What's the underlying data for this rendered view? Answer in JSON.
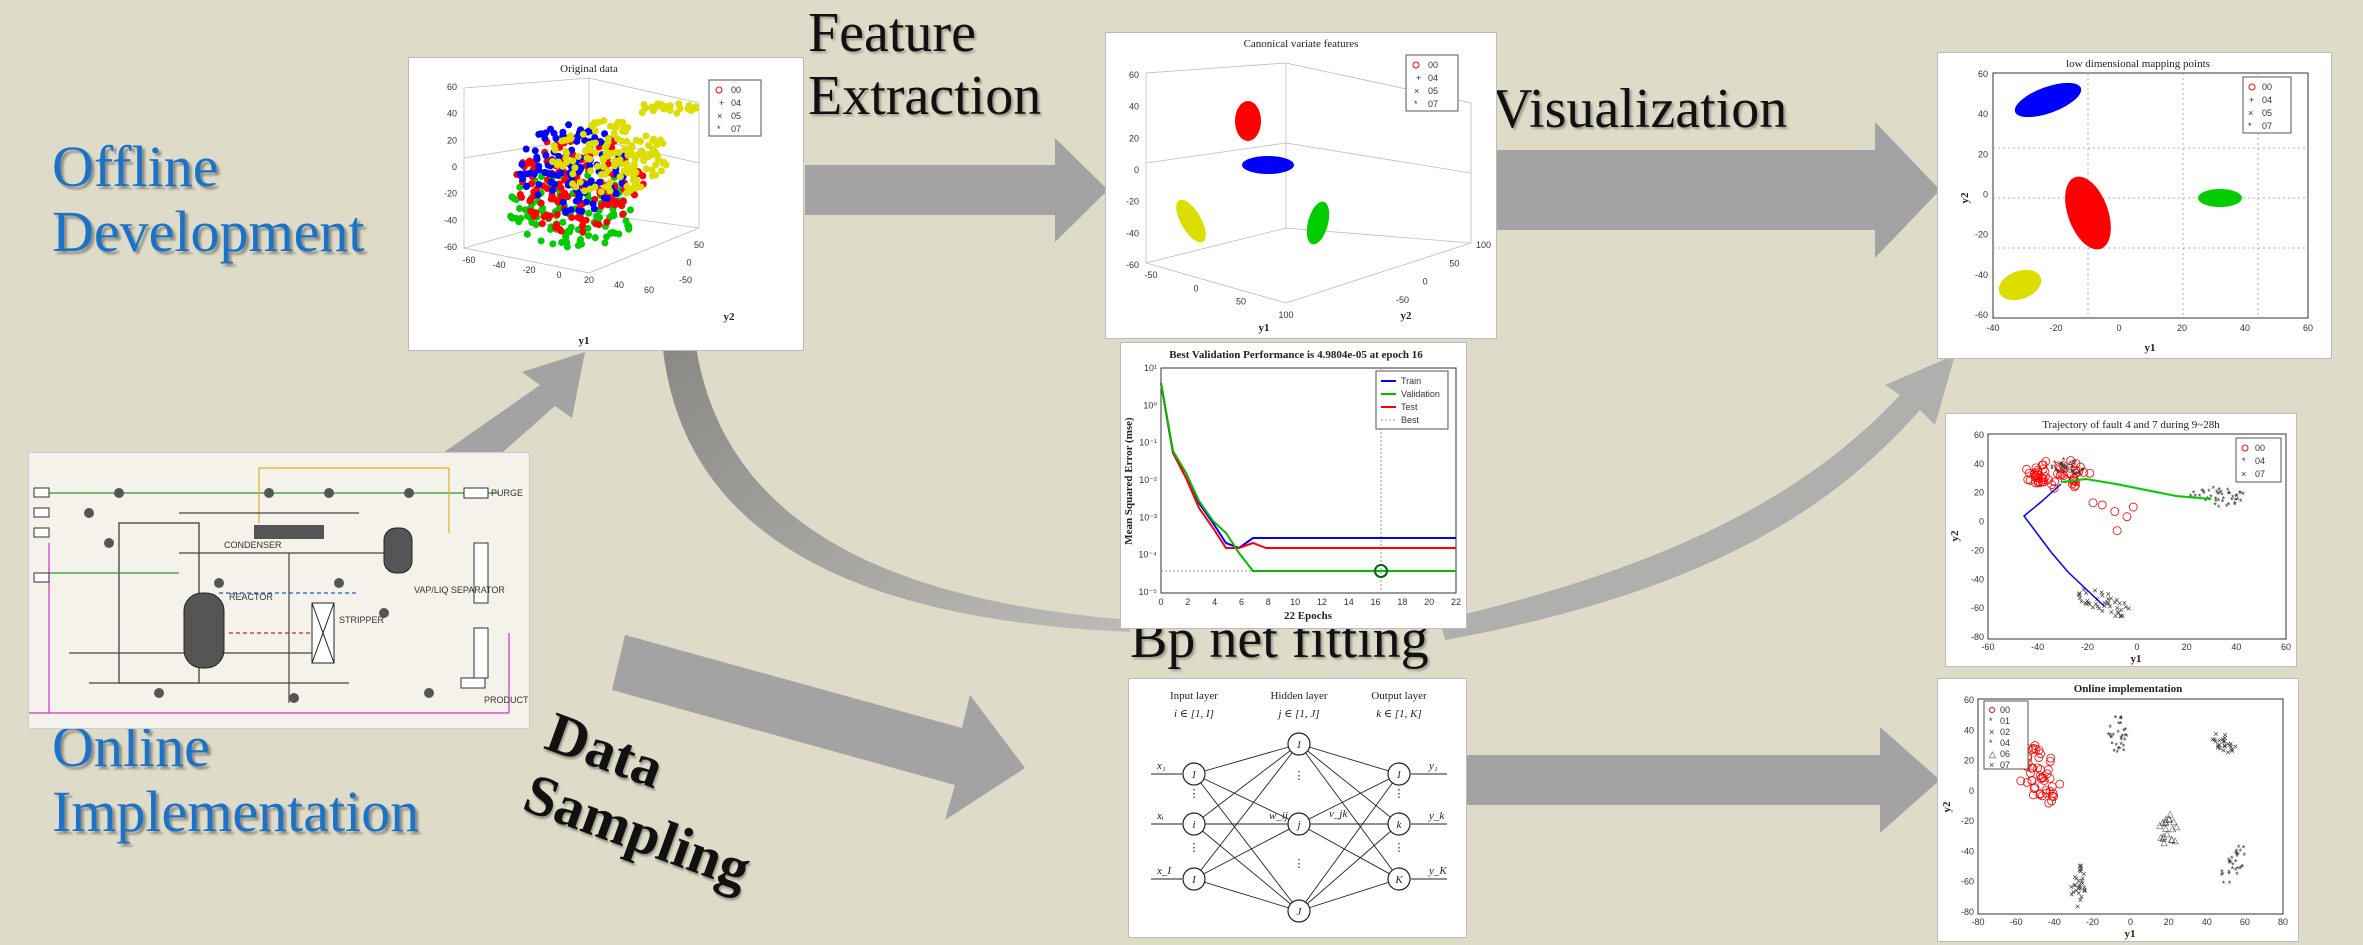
{
  "labels": {
    "offline": "Offline\nDevelopment",
    "online": "Online\nImplementation",
    "feature": "Feature\nExtraction",
    "visualization": "Visualization",
    "data_sampling": "Data\nSampling",
    "bp_fitting": "Bp net fitting"
  },
  "plots": {
    "original": {
      "title": "Original data",
      "xlabel": "y1",
      "ylabel": "y2",
      "legend": [
        "00",
        "04",
        "05",
        "07"
      ],
      "z_ticks": [
        "60",
        "40",
        "20",
        "0",
        "-20",
        "-40",
        "-60"
      ],
      "x_ticks": [
        "-60",
        "-40",
        "-20",
        "0",
        "20",
        "40",
        "60"
      ],
      "y_ticks": [
        "50",
        "0",
        "-50"
      ]
    },
    "canonical": {
      "title": "Canonical variate features",
      "xlabel": "y1",
      "ylabel": "y2",
      "legend": [
        "00",
        "04",
        "05",
        "07"
      ],
      "z_ticks": [
        "60",
        "40",
        "20",
        "0",
        "-20",
        "-40",
        "-60"
      ],
      "x_ticks": [
        "-50",
        "0",
        "50",
        "100"
      ],
      "y_ticks": [
        "100",
        "50",
        "0",
        "-50"
      ]
    },
    "mapping": {
      "title": "low dimensional mapping points",
      "xlabel": "y1",
      "ylabel": "y2",
      "legend": [
        "00",
        "04",
        "05",
        "07"
      ],
      "x_ticks": [
        "-40",
        "-20",
        "0",
        "20",
        "40",
        "60"
      ],
      "y_ticks": [
        "60",
        "40",
        "20",
        "0",
        "-20",
        "-40",
        "-60"
      ]
    },
    "validation": {
      "title": "Best Validation Performance is 4.9804e-05 at epoch 16",
      "xlabel": "22 Epochs",
      "ylabel": "Mean Squared Error (mse)",
      "legend": [
        "Train",
        "Validation",
        "Test",
        "Best"
      ],
      "x_ticks": [
        "0",
        "2",
        "4",
        "6",
        "8",
        "10",
        "12",
        "14",
        "16",
        "18",
        "20",
        "22"
      ],
      "y_ticks": [
        "10¹",
        "10⁰",
        "10⁻¹",
        "10⁻²",
        "10⁻³",
        "10⁻⁴",
        "10⁻⁵"
      ]
    },
    "trajectory": {
      "title": "Trajectory of fault 4 and 7 during 9~28h",
      "xlabel": "y1",
      "ylabel": "y2",
      "legend": [
        "00",
        "04",
        "07"
      ],
      "x_ticks": [
        "-60",
        "-40",
        "-20",
        "0",
        "20",
        "40",
        "60"
      ],
      "y_ticks": [
        "60",
        "40",
        "20",
        "0",
        "-20",
        "-40",
        "-60",
        "-80"
      ]
    },
    "online": {
      "title": "Online implementation",
      "xlabel": "y1",
      "ylabel": "y2",
      "legend": [
        "00",
        "01",
        "02",
        "04",
        "06",
        "07"
      ],
      "x_ticks": [
        "-80",
        "-60",
        "-40",
        "-20",
        "0",
        "20",
        "40",
        "60",
        "80"
      ],
      "y_ticks": [
        "60",
        "40",
        "20",
        "0",
        "-20",
        "-40",
        "-60",
        "-80"
      ]
    }
  },
  "network": {
    "headers": [
      "Input layer",
      "Hidden layer",
      "Output layer"
    ],
    "ranges": [
      "i ∈ [1, I]",
      "j ∈ [1, J]",
      "k ∈ [1, K]"
    ],
    "input_nodes": [
      "1",
      "i",
      "I"
    ],
    "hidden_nodes": [
      "1",
      "j",
      "J"
    ],
    "output_nodes": [
      "1",
      "k",
      "K"
    ],
    "inputs": [
      "x₁",
      "xᵢ",
      "x_I"
    ],
    "outputs": [
      "y₁",
      "y_k",
      "y_K"
    ],
    "weights": [
      "w_ij",
      "v_jk"
    ]
  },
  "process": {
    "labels": [
      "CONDENSER",
      "REACTOR",
      "STRIPPER",
      "VAP/LIQ SEPARATOR",
      "PURGE",
      "PRODUCT"
    ]
  },
  "colors": {
    "background": "#dedbc8",
    "arrow": "#a3a3a3",
    "arrow_dark": "#858585",
    "label_blue": "#1a73c8",
    "c00": "#ff0000",
    "c04": "#00cc00",
    "c05": "#0000ff",
    "c07": "#dddd00",
    "c01": "#e08000",
    "c02": "#8844aa",
    "c06": "#b59a3a"
  }
}
